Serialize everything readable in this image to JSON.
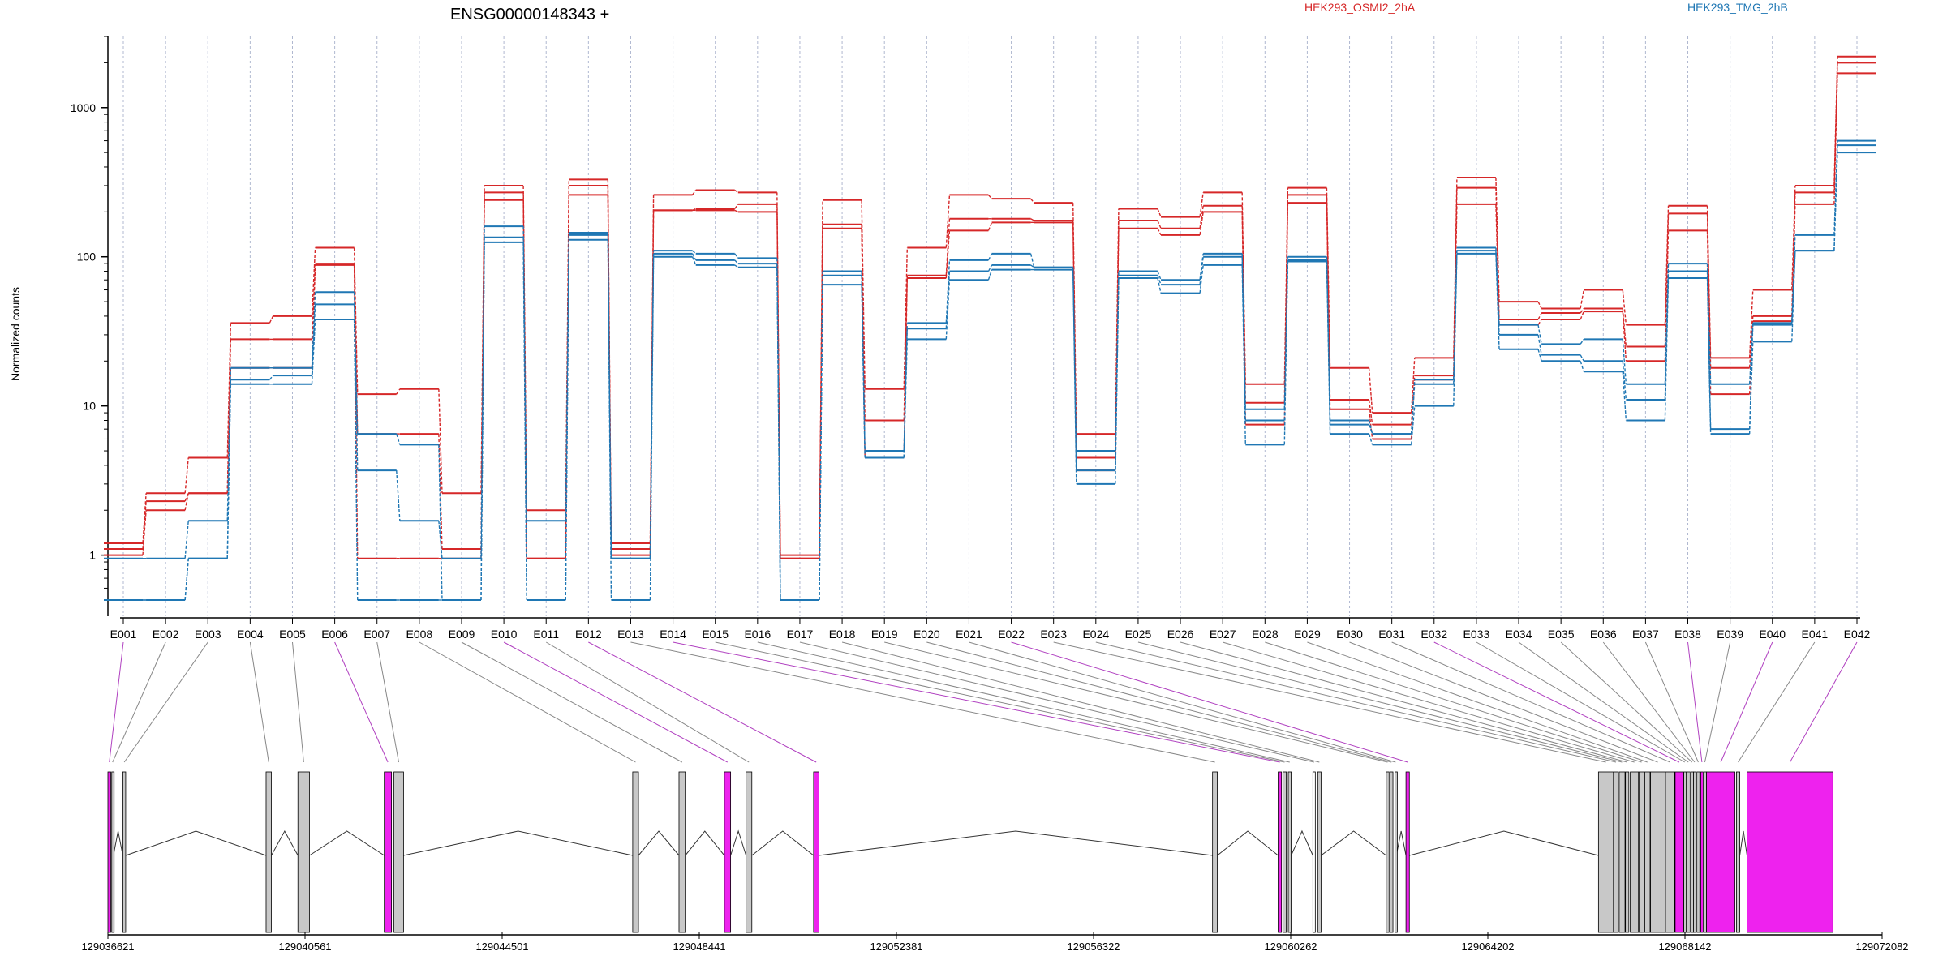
{
  "chart_data": {
    "type": "line",
    "title": "ENSG00000148343 +",
    "ylabel": "Normalized counts",
    "y_scale": "log",
    "y_ticks": [
      "1",
      "10",
      "100",
      "1000"
    ],
    "ylim": [
      0.5,
      3000
    ],
    "grid": "vertical dotted lines at each exon",
    "legend_position": "top-right",
    "categories": [
      "E001",
      "E002",
      "E003",
      "E004",
      "E005",
      "E006",
      "E007",
      "E008",
      "E009",
      "E010",
      "E011",
      "E012",
      "E013",
      "E014",
      "E015",
      "E016",
      "E017",
      "E018",
      "E019",
      "E020",
      "E021",
      "E022",
      "E023",
      "E024",
      "E025",
      "E026",
      "E027",
      "E028",
      "E029",
      "E030",
      "E031",
      "E032",
      "E033",
      "E034",
      "E035",
      "E036",
      "E037",
      "E038",
      "E039",
      "E040",
      "E041",
      "E042"
    ],
    "series": [
      {
        "name": "HEK293_OSMI2_2hA",
        "color": "#d62728",
        "values": [
          1.2,
          2.6,
          4.5,
          36,
          40,
          115,
          12,
          13,
          2.6,
          300,
          2,
          330,
          1.2,
          260,
          280,
          270,
          1,
          240,
          13,
          115,
          260,
          245,
          230,
          6.5,
          210,
          185,
          270,
          14,
          290,
          18,
          9,
          21,
          340,
          50,
          45,
          60,
          35,
          220,
          21,
          60,
          300,
          2200
        ]
      },
      {
        "name": "HEK293_OSMI2_2hA",
        "color": "#d62728",
        "values": [
          1.1,
          2.3,
          2.6,
          28,
          28,
          90,
          6.5,
          6.5,
          1.1,
          270,
          0.95,
          300,
          1.1,
          205,
          205,
          200,
          0.95,
          165,
          8,
          75,
          180,
          180,
          175,
          4.5,
          175,
          155,
          220,
          10.5,
          260,
          11,
          7.5,
          16,
          290,
          38,
          42,
          45,
          25,
          195,
          18,
          40,
          270,
          2000
        ]
      },
      {
        "name": "HEK293_OSMI2_2hA",
        "color": "#d62728",
        "values": [
          1,
          2,
          2.6,
          18,
          18,
          88,
          0.95,
          0.95,
          0.95,
          240,
          0.95,
          260,
          1,
          205,
          210,
          225,
          0.95,
          155,
          4.5,
          72,
          150,
          170,
          170,
          3.7,
          155,
          140,
          200,
          7.5,
          230,
          9.5,
          6,
          15,
          225,
          35,
          38,
          43,
          20,
          150,
          12,
          37,
          225,
          1700
        ]
      },
      {
        "name": "HEK293_TMG_2hB",
        "color": "#1f77b4",
        "values": [
          0.95,
          0.95,
          1.7,
          18,
          18,
          58,
          3.7,
          1.7,
          0.95,
          160,
          1.7,
          145,
          0.95,
          110,
          105,
          98,
          0.5,
          80,
          5,
          36,
          95,
          105,
          85,
          5,
          80,
          70,
          105,
          9.5,
          100,
          8,
          6.5,
          15,
          115,
          35,
          26,
          28,
          14,
          90,
          14,
          36,
          140,
          600
        ]
      },
      {
        "name": "HEK293_TMG_2hB",
        "color": "#1f77b4",
        "values": [
          0.5,
          0.5,
          0.95,
          15,
          16,
          48,
          6.5,
          5.5,
          0.5,
          135,
          0.5,
          140,
          0.95,
          105,
          95,
          90,
          0.5,
          75,
          4.5,
          33,
          80,
          88,
          85,
          3.7,
          75,
          65,
          100,
          8,
          95,
          7.5,
          6.5,
          14,
          110,
          30,
          22,
          20,
          11,
          80,
          7,
          35,
          110,
          560
        ]
      },
      {
        "name": "HEK293_TMG_2hB",
        "color": "#1f77b4",
        "values": [
          0.5,
          0.5,
          0.95,
          14,
          14,
          38,
          0.5,
          0.5,
          0.5,
          125,
          0.5,
          130,
          0.5,
          100,
          88,
          85,
          0.5,
          65,
          4.5,
          28,
          70,
          82,
          82,
          3,
          72,
          57,
          88,
          5.5,
          93,
          6.5,
          5.5,
          10,
          105,
          24,
          20,
          17,
          8,
          72,
          6.5,
          27,
          110,
          500
        ]
      }
    ],
    "genomic_axis": {
      "labels": [
        "129036621",
        "129040561",
        "129044501",
        "129048441",
        "129052381",
        "129056322",
        "129060262",
        "129064202",
        "129068142",
        "129072082"
      ]
    },
    "exon_colors": {
      "normal": "#c8c8c8",
      "significant": "#ee22ee",
      "outline": "#000000"
    }
  }
}
